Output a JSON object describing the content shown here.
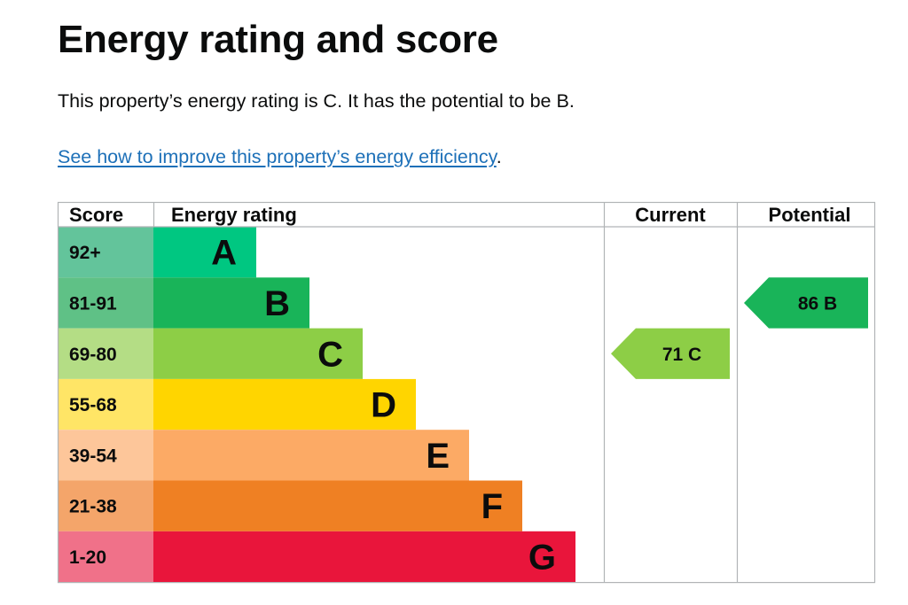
{
  "title": "Energy rating and score",
  "intro": "This property’s energy rating is C. It has the potential to be B.",
  "link_text": "See how to improve this property’s energy efficiency",
  "link_suffix": ".",
  "chart_data": {
    "type": "bar",
    "headers": {
      "score": "Score",
      "rating": "Energy rating",
      "current": "Current",
      "potential": "Potential"
    },
    "bands": [
      {
        "score": "92+",
        "letter": "A",
        "color": "#008054",
        "score_bg": "#63c49b",
        "bar": "#00c781"
      },
      {
        "score": "81-91",
        "letter": "B",
        "color": "#19b459",
        "score_bg": "#5fc186",
        "bar": "#19b459"
      },
      {
        "score": "69-80",
        "letter": "C",
        "color": "#8dce46",
        "score_bg": "#b4dd85",
        "bar": "#8dce46"
      },
      {
        "score": "55-68",
        "letter": "D",
        "color": "#ffd500",
        "score_bg": "#ffe566",
        "bar": "#ffd500"
      },
      {
        "score": "39-54",
        "letter": "E",
        "color": "#fcaa65",
        "score_bg": "#fdc69a",
        "bar": "#fcaa65"
      },
      {
        "score": "21-38",
        "letter": "F",
        "color": "#ef8023",
        "score_bg": "#f4a56a",
        "bar": "#ef8023"
      },
      {
        "score": "1-20",
        "letter": "G",
        "color": "#e9153b",
        "score_bg": "#f07189",
        "bar": "#e9153b"
      }
    ],
    "current": {
      "score": 71,
      "letter": "C",
      "label": "71 C",
      "color": "#8dce46"
    },
    "potential": {
      "score": 86,
      "letter": "B",
      "label": "86 B",
      "color": "#19b459"
    }
  }
}
